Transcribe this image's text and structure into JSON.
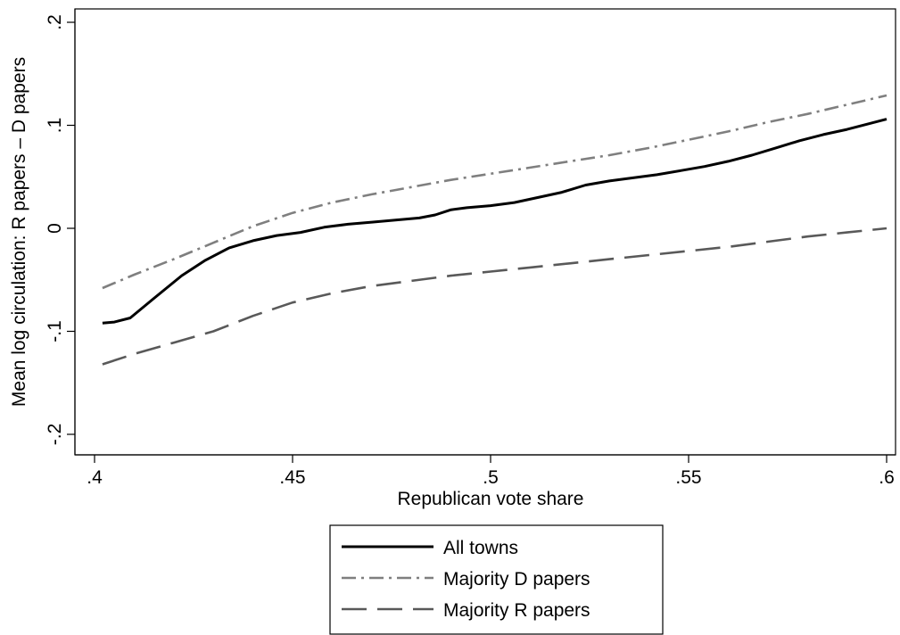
{
  "chart_data": {
    "type": "line",
    "title": "",
    "xlabel": "Republican vote share",
    "ylabel": "Mean log circulation: R papers – D papers",
    "xlim": [
      0.4,
      0.6
    ],
    "ylim": [
      -0.2,
      0.2
    ],
    "xticks": [
      0.4,
      0.45,
      0.5,
      0.55,
      0.6
    ],
    "xtick_labels": [
      ".4",
      ".45",
      ".5",
      ".55",
      ".6"
    ],
    "yticks": [
      -0.2,
      -0.1,
      0,
      0.1,
      0.2
    ],
    "ytick_labels": [
      "-.2",
      "-.1",
      "0",
      ".1",
      ".2"
    ],
    "grid": false,
    "legend_position": "bottom-center",
    "series": [
      {
        "name": "All towns",
        "color": "#000000",
        "dash": "solid",
        "x": [
          0.402,
          0.405,
          0.409,
          0.415,
          0.422,
          0.428,
          0.434,
          0.44,
          0.446,
          0.452,
          0.458,
          0.464,
          0.47,
          0.476,
          0.482,
          0.486,
          0.49,
          0.494,
          0.5,
          0.506,
          0.512,
          0.518,
          0.524,
          0.53,
          0.536,
          0.542,
          0.548,
          0.554,
          0.56,
          0.566,
          0.572,
          0.578,
          0.584,
          0.59,
          0.596,
          0.6
        ],
        "y": [
          -0.092,
          -0.091,
          -0.087,
          -0.068,
          -0.046,
          -0.031,
          -0.019,
          -0.012,
          -0.007,
          -0.004,
          0.001,
          0.004,
          0.006,
          0.008,
          0.01,
          0.013,
          0.018,
          0.02,
          0.022,
          0.025,
          0.03,
          0.035,
          0.042,
          0.046,
          0.049,
          0.052,
          0.056,
          0.06,
          0.065,
          0.071,
          0.078,
          0.085,
          0.091,
          0.096,
          0.102,
          0.106
        ]
      },
      {
        "name": "Majority D papers",
        "color": "#7f7f7f",
        "dash": "dashdot",
        "x": [
          0.402,
          0.41,
          0.42,
          0.43,
          0.44,
          0.45,
          0.46,
          0.47,
          0.48,
          0.49,
          0.5,
          0.51,
          0.52,
          0.53,
          0.54,
          0.55,
          0.56,
          0.57,
          0.58,
          0.59,
          0.6
        ],
        "y": [
          -0.058,
          -0.045,
          -0.03,
          -0.014,
          0.002,
          0.015,
          0.025,
          0.033,
          0.04,
          0.047,
          0.053,
          0.059,
          0.065,
          0.071,
          0.078,
          0.086,
          0.094,
          0.103,
          0.111,
          0.12,
          0.129
        ]
      },
      {
        "name": "Majority R papers",
        "color": "#595959",
        "dash": "longdash",
        "x": [
          0.402,
          0.41,
          0.42,
          0.43,
          0.44,
          0.45,
          0.46,
          0.47,
          0.48,
          0.49,
          0.5,
          0.51,
          0.52,
          0.53,
          0.54,
          0.55,
          0.56,
          0.57,
          0.58,
          0.59,
          0.6
        ],
        "y": [
          -0.132,
          -0.122,
          -0.111,
          -0.1,
          -0.085,
          -0.072,
          -0.063,
          -0.056,
          -0.051,
          -0.046,
          -0.042,
          -0.038,
          -0.034,
          -0.03,
          -0.026,
          -0.022,
          -0.018,
          -0.013,
          -0.008,
          -0.004,
          0.0
        ]
      }
    ]
  }
}
